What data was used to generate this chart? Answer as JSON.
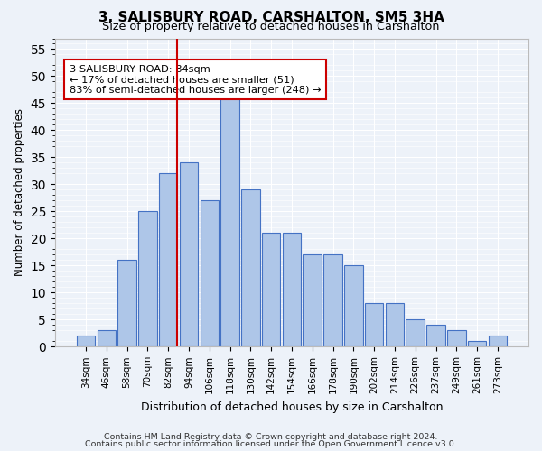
{
  "title1": "3, SALISBURY ROAD, CARSHALTON, SM5 3HA",
  "title2": "Size of property relative to detached houses in Carshalton",
  "xlabel": "Distribution of detached houses by size in Carshalton",
  "ylabel": "Number of detached properties",
  "categories": [
    "34sqm",
    "46sqm",
    "58sqm",
    "70sqm",
    "82sqm",
    "94sqm",
    "106sqm",
    "118sqm",
    "130sqm",
    "142sqm",
    "154sqm",
    "166sqm",
    "178sqm",
    "190sqm",
    "202sqm",
    "214sqm",
    "226sqm",
    "237sqm",
    "249sqm",
    "261sqm",
    "273sqm"
  ],
  "values": [
    2,
    3,
    16,
    25,
    32,
    34,
    27,
    46,
    29,
    21,
    21,
    17,
    17,
    15,
    8,
    8,
    5,
    4,
    3,
    1,
    2
  ],
  "bar_color": "#aec6e8",
  "bar_edge_color": "#4472c4",
  "property_bar_index": 4,
  "vline_color": "#cc0000",
  "annotation_text": "3 SALISBURY ROAD: 84sqm\n← 17% of detached houses are smaller (51)\n83% of semi-detached houses are larger (248) →",
  "annotation_box_color": "#ffffff",
  "annotation_box_edge_color": "#cc0000",
  "ylim": [
    0,
    57
  ],
  "yticks": [
    0,
    5,
    10,
    15,
    20,
    25,
    30,
    35,
    40,
    45,
    50,
    55
  ],
  "footer1": "Contains HM Land Registry data © Crown copyright and database right 2024.",
  "footer2": "Contains public sector information licensed under the Open Government Licence v3.0.",
  "bg_color": "#edf2f9",
  "grid_color": "#ffffff"
}
